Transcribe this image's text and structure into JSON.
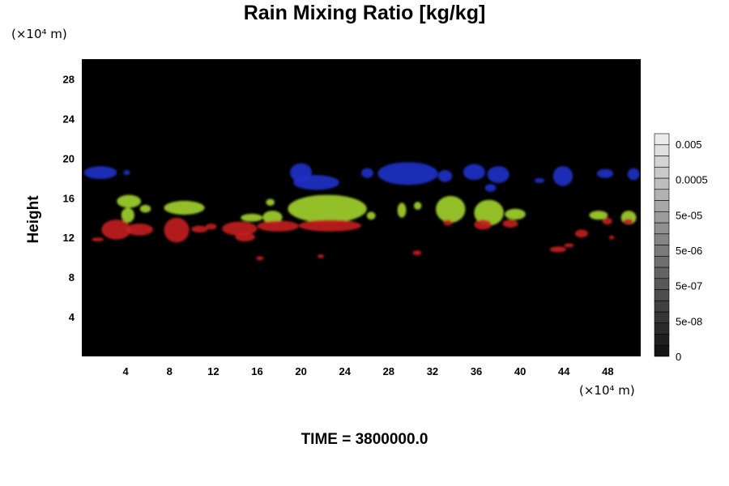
{
  "chart_data": {
    "type": "heatmap",
    "title": "Rain Mixing Ratio [kg/kg]",
    "xlabel": "",
    "ylabel": "Height",
    "x_unit": "(×10⁴ m)",
    "y_unit": "(×10⁴ m)",
    "time_label": "TIME = 3800000.0",
    "xlim": [
      0,
      51
    ],
    "ylim": [
      0,
      30
    ],
    "x_ticks": [
      "4",
      "8",
      "12",
      "16",
      "20",
      "24",
      "28",
      "32",
      "36",
      "40",
      "44",
      "48"
    ],
    "y_ticks": [
      "4",
      "8",
      "12",
      "16",
      "20",
      "24",
      "28"
    ],
    "colorbar": {
      "tick_labels": [
        "0",
        "5e-08",
        "5e-07",
        "5e-06",
        "5e-05",
        "0.0005",
        "0.005"
      ],
      "levels": 20
    },
    "background_color": "#000000",
    "layer_colors": {
      "upper": "#1f2fc4",
      "middle": "#9fcf2a",
      "lower": "#c02020"
    },
    "features": [
      {
        "layer": "upper",
        "x0": 0.2,
        "x1": 3.2,
        "y0": 17.9,
        "y1": 19.2
      },
      {
        "layer": "upper",
        "x0": 3.8,
        "x1": 4.4,
        "y0": 18.3,
        "y1": 18.8
      },
      {
        "layer": "upper",
        "x0": 19.0,
        "x1": 21.0,
        "y0": 17.6,
        "y1": 19.5
      },
      {
        "layer": "upper",
        "x0": 19.3,
        "x1": 23.5,
        "y0": 16.8,
        "y1": 18.3
      },
      {
        "layer": "upper",
        "x0": 25.5,
        "x1": 26.6,
        "y0": 18.0,
        "y1": 19.0
      },
      {
        "layer": "upper",
        "x0": 27.0,
        "x1": 32.5,
        "y0": 17.3,
        "y1": 19.6
      },
      {
        "layer": "upper",
        "x0": 32.5,
        "x1": 33.8,
        "y0": 17.6,
        "y1": 18.8
      },
      {
        "layer": "upper",
        "x0": 34.8,
        "x1": 36.8,
        "y0": 17.8,
        "y1": 19.4
      },
      {
        "layer": "upper",
        "x0": 37.0,
        "x1": 39.0,
        "y0": 17.5,
        "y1": 19.2
      },
      {
        "layer": "upper",
        "x0": 36.8,
        "x1": 37.8,
        "y0": 16.6,
        "y1": 17.4
      },
      {
        "layer": "upper",
        "x0": 41.3,
        "x1": 42.2,
        "y0": 17.5,
        "y1": 18.0
      },
      {
        "layer": "upper",
        "x0": 43.0,
        "x1": 44.8,
        "y0": 17.2,
        "y1": 19.2
      },
      {
        "layer": "upper",
        "x0": 47.0,
        "x1": 48.5,
        "y0": 18.0,
        "y1": 18.9
      },
      {
        "layer": "upper",
        "x0": 49.8,
        "x1": 50.9,
        "y0": 17.8,
        "y1": 19.0
      },
      {
        "layer": "middle",
        "x0": 3.2,
        "x1": 5.4,
        "y0": 15.0,
        "y1": 16.3
      },
      {
        "layer": "middle",
        "x0": 3.6,
        "x1": 4.8,
        "y0": 13.5,
        "y1": 15.0
      },
      {
        "layer": "middle",
        "x0": 5.3,
        "x1": 6.3,
        "y0": 14.5,
        "y1": 15.3
      },
      {
        "layer": "middle",
        "x0": 7.5,
        "x1": 11.2,
        "y0": 14.3,
        "y1": 15.7
      },
      {
        "layer": "middle",
        "x0": 14.5,
        "x1": 16.5,
        "y0": 13.6,
        "y1": 14.4
      },
      {
        "layer": "middle",
        "x0": 16.5,
        "x1": 18.3,
        "y0": 13.4,
        "y1": 14.7
      },
      {
        "layer": "middle",
        "x0": 16.8,
        "x1": 17.6,
        "y0": 15.2,
        "y1": 15.9
      },
      {
        "layer": "middle",
        "x0": 18.8,
        "x1": 26.0,
        "y0": 13.5,
        "y1": 16.3
      },
      {
        "layer": "middle",
        "x0": 26.0,
        "x1": 26.8,
        "y0": 13.8,
        "y1": 14.6
      },
      {
        "layer": "middle",
        "x0": 28.8,
        "x1": 29.6,
        "y0": 14.0,
        "y1": 15.5
      },
      {
        "layer": "middle",
        "x0": 30.3,
        "x1": 31.0,
        "y0": 14.8,
        "y1": 15.6
      },
      {
        "layer": "middle",
        "x0": 32.3,
        "x1": 35.0,
        "y0": 13.5,
        "y1": 16.2
      },
      {
        "layer": "middle",
        "x0": 35.8,
        "x1": 38.5,
        "y0": 13.2,
        "y1": 15.8
      },
      {
        "layer": "middle",
        "x0": 38.6,
        "x1": 40.5,
        "y0": 13.8,
        "y1": 14.9
      },
      {
        "layer": "middle",
        "x0": 46.3,
        "x1": 48.0,
        "y0": 13.8,
        "y1": 14.7
      },
      {
        "layer": "middle",
        "x0": 49.2,
        "x1": 50.6,
        "y0": 13.3,
        "y1": 14.7
      },
      {
        "layer": "lower",
        "x0": 1.8,
        "x1": 4.5,
        "y0": 11.8,
        "y1": 13.8
      },
      {
        "layer": "lower",
        "x0": 4.0,
        "x1": 6.5,
        "y0": 12.2,
        "y1": 13.4
      },
      {
        "layer": "lower",
        "x0": 0.9,
        "x1": 2.0,
        "y0": 11.6,
        "y1": 12.0
      },
      {
        "layer": "lower",
        "x0": 7.5,
        "x1": 9.8,
        "y0": 11.5,
        "y1": 14.0
      },
      {
        "layer": "lower",
        "x0": 10.0,
        "x1": 11.5,
        "y0": 12.5,
        "y1": 13.2
      },
      {
        "layer": "lower",
        "x0": 11.3,
        "x1": 12.3,
        "y0": 12.8,
        "y1": 13.4
      },
      {
        "layer": "lower",
        "x0": 12.8,
        "x1": 16.0,
        "y0": 12.2,
        "y1": 13.6
      },
      {
        "layer": "lower",
        "x0": 14.0,
        "x1": 15.8,
        "y0": 11.6,
        "y1": 12.5
      },
      {
        "layer": "lower",
        "x0": 16.0,
        "x1": 19.8,
        "y0": 12.6,
        "y1": 13.7
      },
      {
        "layer": "lower",
        "x0": 19.8,
        "x1": 25.5,
        "y0": 12.6,
        "y1": 13.8
      },
      {
        "layer": "lower",
        "x0": 15.9,
        "x1": 16.6,
        "y0": 9.7,
        "y1": 10.1
      },
      {
        "layer": "lower",
        "x0": 21.5,
        "x1": 22.1,
        "y0": 9.9,
        "y1": 10.3
      },
      {
        "layer": "lower",
        "x0": 30.2,
        "x1": 31.0,
        "y0": 10.2,
        "y1": 10.7
      },
      {
        "layer": "lower",
        "x0": 33.0,
        "x1": 33.8,
        "y0": 13.2,
        "y1": 13.8
      },
      {
        "layer": "lower",
        "x0": 35.8,
        "x1": 37.4,
        "y0": 12.8,
        "y1": 13.8
      },
      {
        "layer": "lower",
        "x0": 38.4,
        "x1": 39.8,
        "y0": 13.0,
        "y1": 13.8
      },
      {
        "layer": "lower",
        "x0": 42.7,
        "x1": 44.2,
        "y0": 10.5,
        "y1": 11.1
      },
      {
        "layer": "lower",
        "x0": 44.0,
        "x1": 44.9,
        "y0": 11.0,
        "y1": 11.4
      },
      {
        "layer": "lower",
        "x0": 45.0,
        "x1": 46.2,
        "y0": 12.0,
        "y1": 12.8
      },
      {
        "layer": "lower",
        "x0": 48.1,
        "x1": 48.6,
        "y0": 11.8,
        "y1": 12.2
      },
      {
        "layer": "lower",
        "x0": 47.5,
        "x1": 48.4,
        "y0": 13.3,
        "y1": 14.0
      },
      {
        "layer": "lower",
        "x0": 49.4,
        "x1": 50.3,
        "y0": 13.3,
        "y1": 13.9
      }
    ]
  }
}
